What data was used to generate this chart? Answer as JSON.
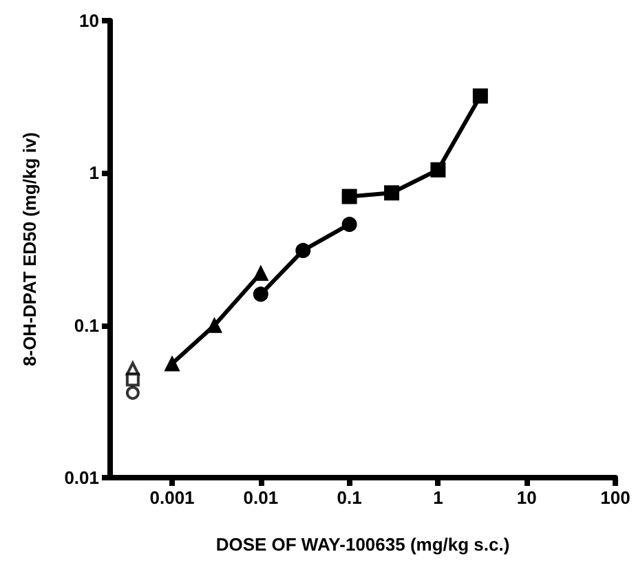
{
  "chart_data": {
    "type": "line",
    "xlabel": "DOSE OF WAY-100635 (mg/kg s.c.)",
    "ylabel": "8-OH-DPAT ED50 (mg/kg iv)",
    "log": "xy",
    "xlim": [
      0.0002,
      100
    ],
    "xticks": [
      0.001,
      0.01,
      0.1,
      1,
      10,
      100
    ],
    "ylim": [
      0.01,
      10
    ],
    "yticks": [
      0.01,
      0.1,
      1,
      10
    ],
    "grid": false,
    "series": [
      {
        "marker": "triangle",
        "color": "#000000",
        "x": [
          0.001,
          0.003,
          0.01
        ],
        "values": [
          0.056,
          0.1,
          0.22
        ]
      },
      {
        "marker": "circle",
        "color": "#000000",
        "x": [
          0.01,
          0.03,
          0.1
        ],
        "values": [
          0.16,
          0.31,
          0.46
        ]
      },
      {
        "marker": "square",
        "color": "#000000",
        "x": [
          0.1,
          0.3,
          1,
          3
        ],
        "values": [
          0.7,
          0.74,
          1.05,
          3.2
        ]
      },
      {
        "type": "scatter",
        "marker": "triangle",
        "color": "#000000",
        "x": [
          0.00036
        ],
        "values": [
          0.052
        ]
      },
      {
        "type": "scatter",
        "marker": "square",
        "color": "#000000",
        "x": [
          0.00036
        ],
        "values": [
          0.044
        ]
      },
      {
        "type": "scatter",
        "marker": "circle",
        "color": "#000000",
        "x": [
          0.00036
        ],
        "values": [
          0.036
        ]
      }
    ]
  }
}
